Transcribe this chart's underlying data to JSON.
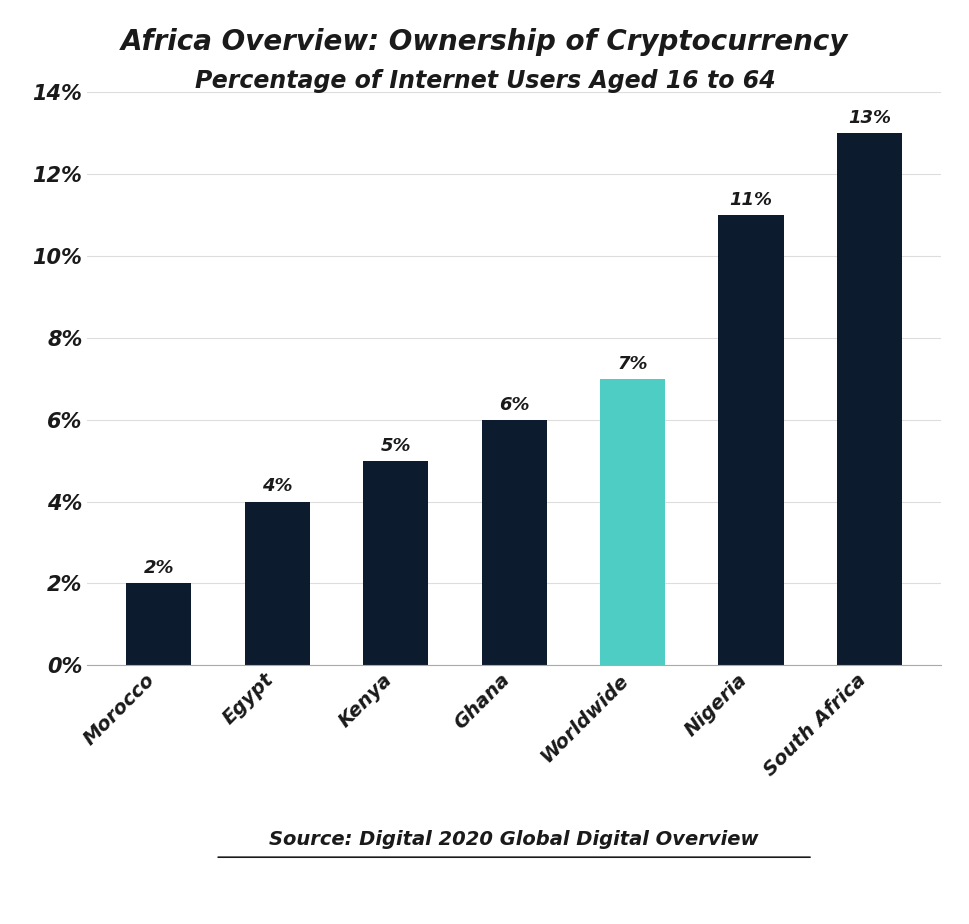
{
  "categories": [
    "Morocco",
    "Egypt",
    "Kenya",
    "Ghana",
    "Worldwide",
    "Nigeria",
    "South Africa"
  ],
  "values": [
    2,
    4,
    5,
    6,
    7,
    11,
    13
  ],
  "bar_colors": [
    "#0d1b2e",
    "#0d1b2e",
    "#0d1b2e",
    "#0d1b2e",
    "#4ecdc4",
    "#0d1b2e",
    "#0d1b2e"
  ],
  "title_line1": "Africa Overview: Ownership of Cryptocurrency",
  "title_line2": "Percentage of Internet Users Aged 16 to 64",
  "source_text": "Source: Digital 2020 Global Digital Overview",
  "ylim": [
    0,
    14
  ],
  "yticks": [
    0,
    2,
    4,
    6,
    8,
    10,
    12,
    14
  ],
  "background_color": "#ffffff",
  "bar_label_fontsize": 13,
  "title_fontsize": 20,
  "subtitle_fontsize": 17,
  "ytick_fontsize": 15,
  "xtick_fontsize": 14,
  "source_fontsize": 14,
  "bar_width": 0.55,
  "text_color": "#1a1a1a",
  "spine_color": "#aaaaaa",
  "grid_color": "#dddddd"
}
